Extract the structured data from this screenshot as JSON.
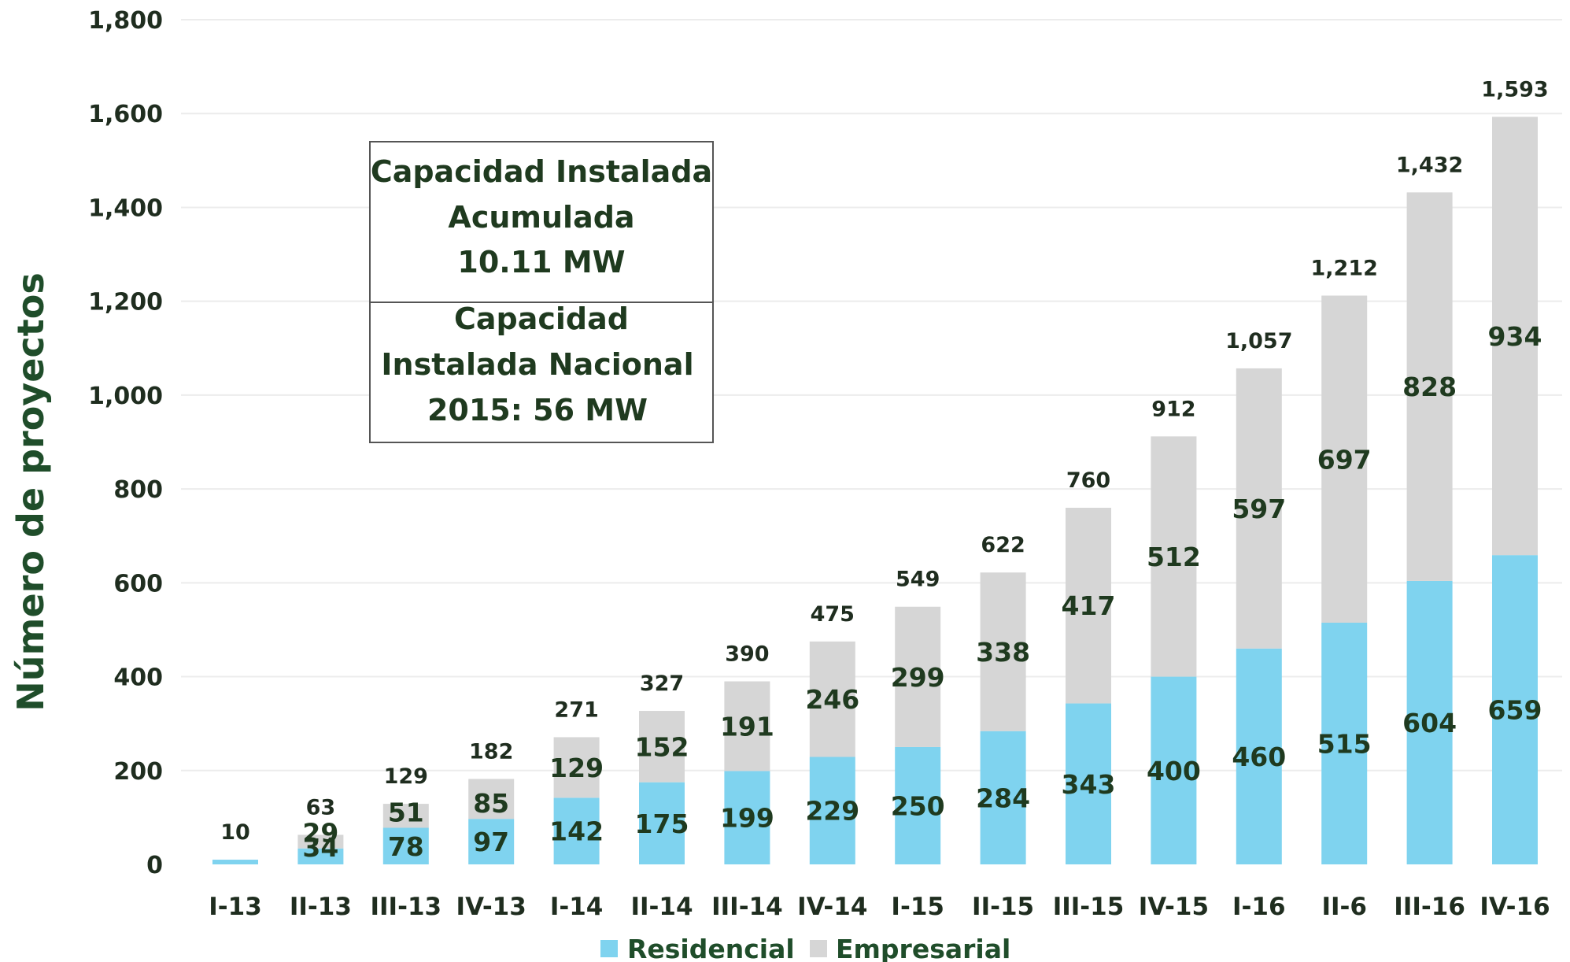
{
  "chart_data": {
    "type": "bar",
    "stacked": true,
    "ylabel": "Número de proyectos",
    "ylim": [
      0,
      1800
    ],
    "yticks": [
      "0",
      "200",
      "400",
      "600",
      "800",
      "1,000",
      "1,200",
      "1,400",
      "1,600",
      "1,800"
    ],
    "ytick_values": [
      0,
      200,
      400,
      600,
      800,
      1000,
      1200,
      1400,
      1600,
      1800
    ],
    "grid": true,
    "legend_placement": "bottom",
    "categories": [
      "I-13",
      "II-13",
      "III-13",
      "IV-13",
      "I-14",
      "II-14",
      "III-14",
      "IV-14",
      "I-15",
      "II-15",
      "III-15",
      "IV-15",
      "I-16",
      "II-6",
      "III-16",
      "IV-16"
    ],
    "series": [
      {
        "name": "Residencial",
        "color": "#7fd3ef",
        "values": [
          10,
          34,
          78,
          97,
          142,
          175,
          199,
          229,
          250,
          284,
          343,
          400,
          460,
          515,
          604,
          659
        ],
        "labels": [
          "",
          "34",
          "78",
          "97",
          "142",
          "175",
          "199",
          "229",
          "250",
          "284",
          "343",
          "400",
          "460",
          "515",
          "604",
          "659"
        ]
      },
      {
        "name": "Empresarial",
        "color": "#d6d6d6",
        "values": [
          0,
          29,
          51,
          85,
          129,
          152,
          191,
          246,
          299,
          338,
          417,
          512,
          597,
          697,
          828,
          934
        ],
        "labels": [
          "",
          "29",
          "51",
          "85",
          "129",
          "152",
          "191",
          "246",
          "299",
          "338",
          "417",
          "512",
          "597",
          "697",
          "828",
          "934"
        ]
      }
    ],
    "totals": [
      10,
      63,
      129,
      182,
      271,
      327,
      390,
      475,
      549,
      622,
      760,
      912,
      1057,
      1212,
      1432,
      1593
    ],
    "total_labels": [
      "10",
      "63",
      "129",
      "182",
      "271",
      "327",
      "390",
      "475",
      "549",
      "622",
      "760",
      "912",
      "1,057",
      "1,212",
      "1,432",
      "1,593"
    ],
    "annotation_box": {
      "top_lines": [
        "Capacidad Instalada",
        "Acumulada",
        "10.11 MW"
      ],
      "bottom_lines": [
        "Capacidad",
        "Instalada Nacional",
        "2015: 56 MW"
      ]
    }
  }
}
